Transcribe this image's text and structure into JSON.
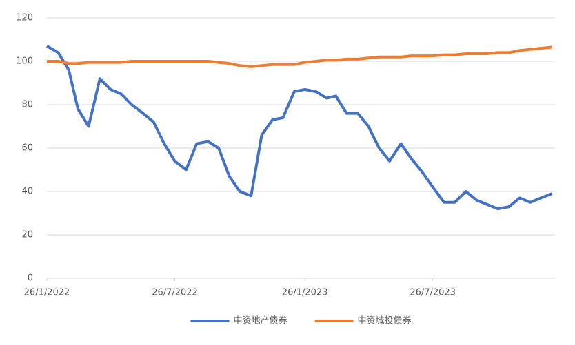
{
  "chart_data": {
    "type": "line",
    "x": [
      "26/1/2022",
      "11/2/2022",
      "26/2/2022",
      "11/3/2022",
      "26/3/2022",
      "11/4/2022",
      "26/4/2022",
      "11/5/2022",
      "26/5/2022",
      "11/6/2022",
      "26/6/2022",
      "11/7/2022",
      "26/7/2022",
      "11/8/2022",
      "26/8/2022",
      "11/9/2022",
      "26/9/2022",
      "11/10/2022",
      "26/10/2022",
      "11/11/2022",
      "26/11/2022",
      "11/12/2022",
      "26/12/2022",
      "11/1/2023",
      "26/1/2023",
      "11/2/2023",
      "26/2/2023",
      "11/3/2023",
      "26/3/2023",
      "11/4/2023",
      "26/4/2023",
      "11/5/2023",
      "26/5/2023",
      "11/6/2023",
      "26/6/2023",
      "11/7/2023",
      "26/7/2023",
      "11/8/2023",
      "26/8/2023",
      "11/9/2023",
      "26/9/2023",
      "11/10/2023",
      "26/10/2023",
      "11/11/2023",
      "26/11/2023",
      "11/12/2023",
      "26/12/2023",
      "11/1/2024"
    ],
    "series": [
      {
        "name": "中资地产债券",
        "color": "#4472c4",
        "values": [
          107,
          104,
          96,
          78,
          70,
          92,
          87,
          85,
          80,
          76,
          72,
          62,
          54,
          50,
          62,
          63,
          60,
          47,
          40,
          38,
          66,
          73,
          74,
          86,
          87,
          86,
          83,
          84,
          76,
          76,
          70,
          60,
          54,
          62,
          55,
          49,
          42,
          35,
          35,
          40,
          36,
          34,
          32,
          33,
          37,
          35,
          37,
          39
        ]
      },
      {
        "name": "中资城投债券",
        "color": "#ed7d31",
        "values": [
          100,
          100,
          99,
          99,
          99.5,
          99.5,
          99.5,
          99.5,
          100,
          100,
          100,
          100,
          100,
          100,
          100,
          100,
          99.5,
          99,
          98,
          97.5,
          98,
          98.5,
          98.5,
          98.5,
          99.5,
          100,
          100.5,
          100.5,
          101,
          101,
          101.5,
          102,
          102,
          102,
          102.5,
          102.5,
          102.5,
          103,
          103,
          103.5,
          103.5,
          103.5,
          104,
          104,
          105,
          105.5,
          106,
          106.5
        ]
      }
    ],
    "xlim": [
      "26/1/2022",
      "15/1/2024"
    ],
    "xticks": [
      "26/1/2022",
      "26/7/2022",
      "26/1/2023",
      "26/7/2023"
    ],
    "ylim": [
      0,
      120
    ],
    "yticks": [
      0,
      20,
      40,
      60,
      80,
      100,
      120
    ],
    "grid": true,
    "legend": "bottom"
  }
}
